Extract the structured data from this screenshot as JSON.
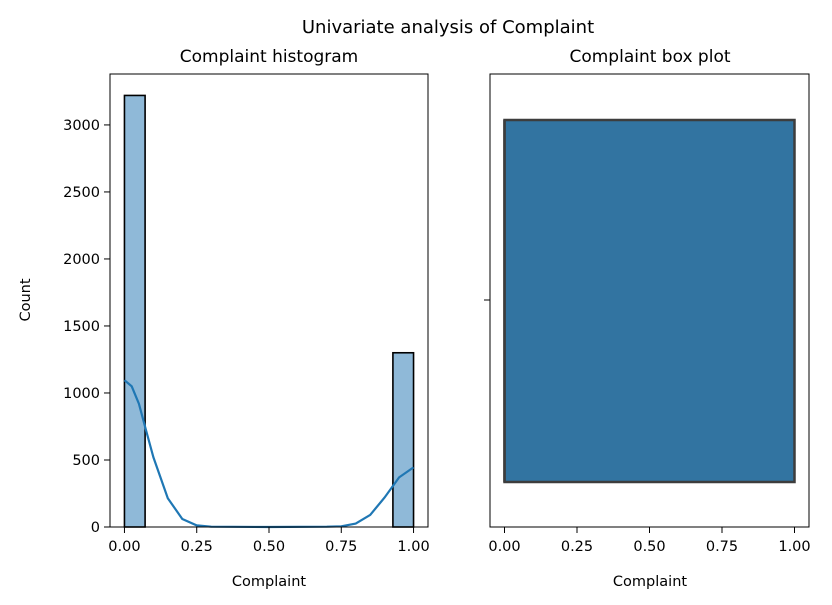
{
  "figure": {
    "suptitle": "Univariate analysis of Complaint"
  },
  "colors": {
    "hist_fill": "#8fb9d8",
    "kde_line": "#1f77b4",
    "box_fill": "#3274a1",
    "box_edge": "#3d3d3d",
    "axis": "#000000"
  },
  "chart_data": [
    {
      "type": "bar",
      "title": "Complaint histogram",
      "xlabel": "Complaint",
      "ylabel": "Count",
      "xlim": [
        -0.05,
        1.05
      ],
      "ylim": [
        0,
        3380
      ],
      "xticks": [
        0.0,
        0.25,
        0.5,
        0.75,
        1.0
      ],
      "xtick_labels": [
        "0.00",
        "0.25",
        "0.50",
        "0.75",
        "1.00"
      ],
      "yticks": [
        0,
        500,
        1000,
        1500,
        2000,
        2500,
        3000
      ],
      "ytick_labels": [
        "0",
        "500",
        "1000",
        "1500",
        "2000",
        "2500",
        "3000"
      ],
      "bars": [
        {
          "x0": 0.0,
          "x1": 0.0714,
          "value": 3220
        },
        {
          "x0": 0.9286,
          "x1": 1.0,
          "value": 1300
        }
      ],
      "kde": {
        "x": [
          0.0,
          0.025,
          0.05,
          0.075,
          0.1,
          0.15,
          0.2,
          0.25,
          0.3,
          0.5,
          0.7,
          0.75,
          0.8,
          0.85,
          0.9,
          0.95,
          1.0
        ],
        "y": [
          1095,
          1050,
          920,
          720,
          520,
          215,
          60,
          12,
          2,
          0,
          2,
          5,
          25,
          90,
          220,
          370,
          445
        ]
      }
    },
    {
      "type": "box",
      "title": "Complaint box plot",
      "xlabel": "Complaint",
      "xlim": [
        -0.05,
        1.05
      ],
      "xticks": [
        0.0,
        0.25,
        0.5,
        0.75,
        1.0
      ],
      "xtick_labels": [
        "0.00",
        "0.25",
        "0.50",
        "0.75",
        "1.00"
      ],
      "box": {
        "q1": 0.0,
        "median": 0.0,
        "q3": 1.0,
        "whisker_low": 0.0,
        "whisker_high": 1.0
      }
    }
  ]
}
